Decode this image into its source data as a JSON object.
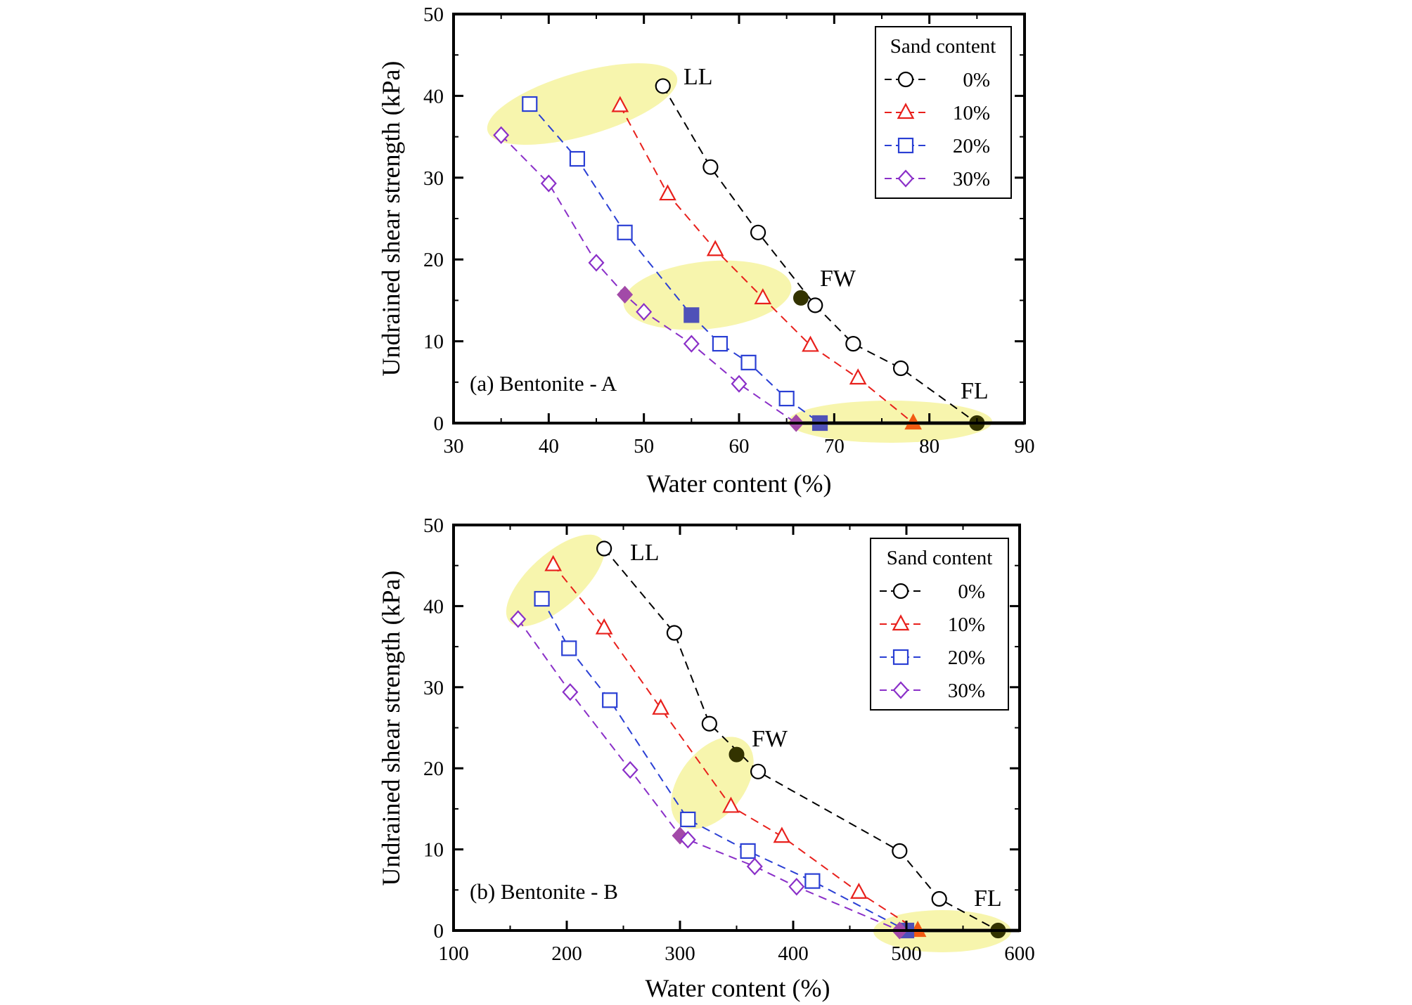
{
  "chart_data": [
    {
      "type": "scatter",
      "panel_label": "(a) Bentonite - A",
      "xlabel": "Water content (%)",
      "ylabel": "Undrained shear strength (kPa)",
      "xlim": [
        30,
        90
      ],
      "ylim": [
        0,
        50
      ],
      "xticks": [
        "30",
        "40",
        "50",
        "60",
        "70",
        "80",
        "90"
      ],
      "yticks": [
        "0",
        "10",
        "20",
        "30",
        "40",
        "50"
      ],
      "legend_title": "Sand content",
      "legend_position": "top-right",
      "grid": false,
      "annotations": [
        "LL",
        "FW",
        "FL"
      ],
      "series": [
        {
          "name": "0%",
          "marker": "circle",
          "color": "#000000",
          "x": [
            52,
            57,
            62,
            68,
            72,
            77,
            85
          ],
          "y": [
            41.2,
            31.3,
            23.3,
            14.4,
            9.7,
            6.7,
            0
          ],
          "filled": [
            false,
            false,
            false,
            false,
            false,
            false,
            true
          ]
        },
        {
          "name": "10%",
          "marker": "triangle",
          "color": "#e8201c",
          "x": [
            47.5,
            52.5,
            57.5,
            62.5,
            67.5,
            72.5,
            78.3
          ],
          "y": [
            38.8,
            28,
            21.2,
            15.3,
            9.5,
            5.5,
            0
          ],
          "filled": [
            false,
            false,
            false,
            false,
            false,
            false,
            true
          ]
        },
        {
          "name": "20%",
          "marker": "square",
          "color": "#2a3fd4",
          "x": [
            38,
            43,
            48,
            55,
            58,
            61,
            65,
            68.5
          ],
          "y": [
            39,
            32.3,
            23.3,
            13.2,
            9.7,
            7.4,
            3,
            0
          ],
          "filled": [
            false,
            false,
            false,
            true,
            false,
            false,
            false,
            true
          ]
        },
        {
          "name": "30%",
          "marker": "diamond",
          "color": "#8a2fc8",
          "x": [
            35,
            40,
            45,
            48,
            50,
            55,
            60,
            66
          ],
          "y": [
            35.2,
            29.3,
            19.6,
            15.7,
            13.6,
            9.7,
            4.8,
            0
          ],
          "filled": [
            false,
            false,
            false,
            true,
            false,
            false,
            false,
            true
          ]
        }
      ],
      "special_points": [
        {
          "label": "FW",
          "series": "0%",
          "x": 66.5,
          "y": 15.3
        }
      ]
    },
    {
      "type": "scatter",
      "panel_label": "(b) Bentonite - B",
      "xlabel": "Water content (%)",
      "ylabel": "Undrained shear strength (kPa)",
      "xlim": [
        100,
        600
      ],
      "ylim": [
        0,
        50
      ],
      "xticks": [
        "100",
        "200",
        "300",
        "400",
        "500",
        "600"
      ],
      "yticks": [
        "0",
        "10",
        "20",
        "30",
        "40",
        "50"
      ],
      "legend_title": "Sand content",
      "legend_position": "top-right",
      "grid": false,
      "annotations": [
        "LL",
        "FW",
        "FL"
      ],
      "series": [
        {
          "name": "0%",
          "marker": "circle",
          "color": "#000000",
          "x": [
            233,
            295,
            326,
            369,
            494,
            529,
            581
          ],
          "y": [
            47.1,
            36.7,
            25.5,
            19.6,
            9.8,
            3.9,
            0
          ],
          "filled": [
            false,
            false,
            false,
            false,
            false,
            false,
            true
          ]
        },
        {
          "name": "10%",
          "marker": "triangle",
          "color": "#e8201c",
          "x": [
            188,
            233,
            283,
            345,
            390,
            458,
            510
          ],
          "y": [
            45.1,
            37.3,
            27.4,
            15.3,
            11.6,
            4.7,
            0
          ],
          "filled": [
            false,
            false,
            false,
            false,
            false,
            false,
            true
          ]
        },
        {
          "name": "20%",
          "marker": "square",
          "color": "#2a3fd4",
          "x": [
            178,
            202,
            238,
            307,
            360,
            417,
            500
          ],
          "y": [
            40.9,
            34.8,
            28.4,
            13.7,
            9.8,
            6.1,
            0
          ],
          "filled": [
            false,
            false,
            false,
            false,
            false,
            false,
            true
          ]
        },
        {
          "name": "30%",
          "marker": "diamond",
          "color": "#8a2fc8",
          "x": [
            157,
            203,
            256,
            300,
            307,
            366,
            403,
            494
          ],
          "y": [
            38.4,
            29.4,
            19.8,
            11.7,
            11.2,
            7.9,
            5.4,
            0
          ],
          "filled": [
            false,
            false,
            false,
            true,
            false,
            false,
            false,
            true
          ]
        }
      ],
      "special_points": [
        {
          "label": "FW",
          "series": "0%",
          "x": 350,
          "y": 21.7
        }
      ]
    }
  ],
  "colors": {
    "highlight": "#f6f4a4",
    "filled_10": "#f25a12",
    "filled_20": "#4f51b8",
    "filled_30": "#a24aa8",
    "filled_0": "#333300"
  }
}
